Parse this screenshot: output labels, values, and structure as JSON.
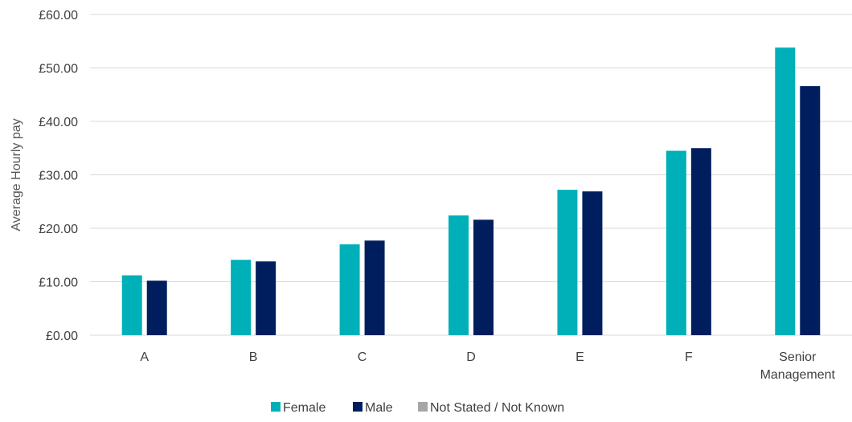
{
  "chart_data": {
    "type": "bar",
    "ylabel": "Average Hourly pay",
    "xlabel": "",
    "ylim": [
      0,
      60
    ],
    "y_ticks": [
      "£0.00",
      "£10.00",
      "£20.00",
      "£30.00",
      "£40.00",
      "£50.00",
      "£60.00"
    ],
    "y_tick_values": [
      0,
      10,
      20,
      30,
      40,
      50,
      60
    ],
    "categories": [
      "A",
      "B",
      "C",
      "D",
      "E",
      "F",
      "Senior Management"
    ],
    "category_label_lines": [
      [
        "A"
      ],
      [
        "B"
      ],
      [
        "C"
      ],
      [
        "D"
      ],
      [
        "E"
      ],
      [
        "F"
      ],
      [
        "Senior",
        "Management"
      ]
    ],
    "series": [
      {
        "name": "Female",
        "color": "#00b0b9",
        "values": [
          11.2,
          14.1,
          17.0,
          22.4,
          27.2,
          34.5,
          53.8
        ]
      },
      {
        "name": "Male",
        "color": "#001e5e",
        "values": [
          10.2,
          13.8,
          17.7,
          21.6,
          26.9,
          35.0,
          46.6
        ]
      },
      {
        "name": "Not Stated / Not Known",
        "color": "#a6a6a6",
        "values": [
          null,
          null,
          null,
          null,
          null,
          null,
          null
        ]
      }
    ],
    "grid": true,
    "legend_position": "bottom-center"
  }
}
